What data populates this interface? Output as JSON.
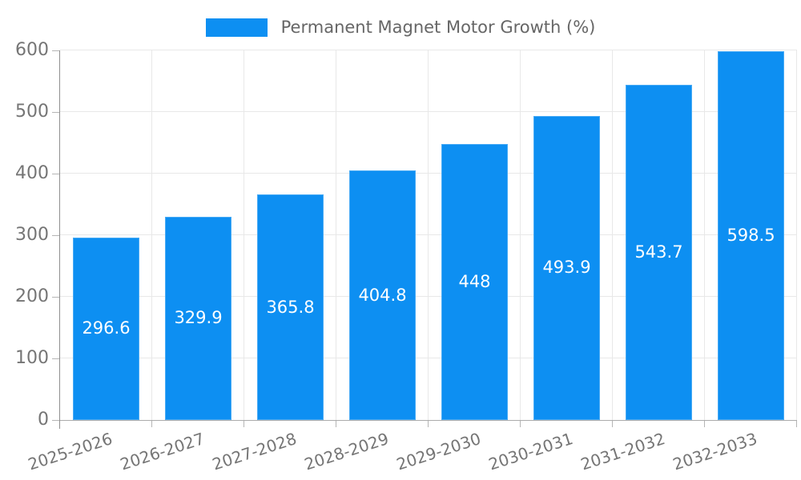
{
  "chart_data": {
    "type": "bar",
    "title": "",
    "xlabel": "",
    "ylabel": "",
    "legend": {
      "label": "Permanent Magnet Motor Growth (%)",
      "position": "top"
    },
    "categories": [
      "2025-2026",
      "2026-2027",
      "2027-2028",
      "2028-2029",
      "2029-2030",
      "2030-2031",
      "2031-2032",
      "2032-2033"
    ],
    "series": [
      {
        "name": "Permanent Magnet Motor Growth (%)",
        "values": [
          296.6,
          329.9,
          365.8,
          404.8,
          448,
          493.9,
          543.7,
          598.5
        ],
        "value_labels": [
          "296.6",
          "329.9",
          "365.8",
          "404.8",
          "448",
          "493.9",
          "543.7",
          "598.5"
        ]
      }
    ],
    "ylim": [
      0,
      600
    ],
    "yticks": [
      0,
      100,
      200,
      300,
      400,
      500,
      600
    ],
    "grid": true,
    "colors": {
      "bar": "#0d8ff2",
      "grid": "#e8e8e8",
      "axis_y": "#8f8f8f",
      "axis_x": "#ababab",
      "tick": "#b5b5b5",
      "tick_label": "#757575",
      "legend_text": "#666666",
      "value_label": "#ffffff",
      "background": "#ffffff"
    }
  }
}
